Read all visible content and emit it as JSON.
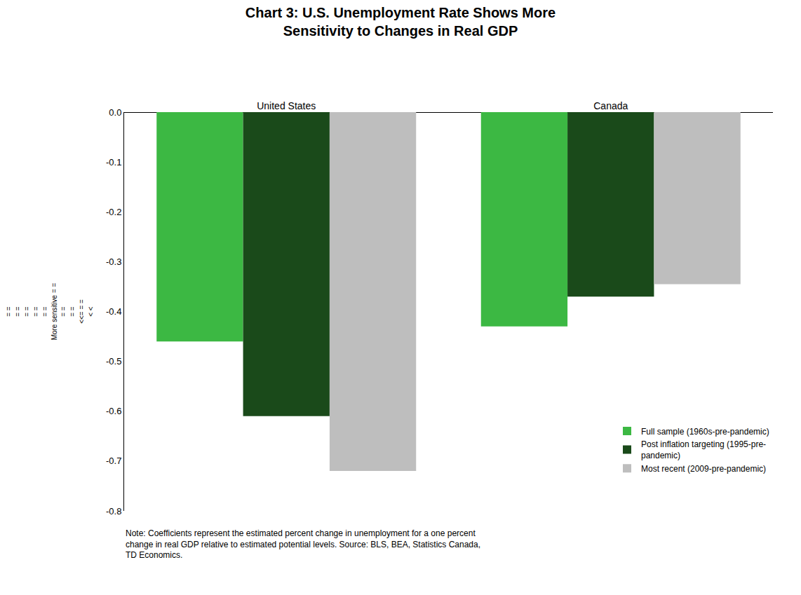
{
  "chart_data": {
    "type": "bar",
    "title": "Chart 3: U.S. Unemployment Rate Shows More\nSensitivity to Changes in Real GDP",
    "ylabel": "= =\n= =\n= =\n= =\n= =\nMore sensitive = =\n= =\n= =\n<<= = =\n< <",
    "categories": [
      "United States",
      "Canada"
    ],
    "series": [
      {
        "name": "Full sample (1960s-pre-pandemic)",
        "color": "#3CB843",
        "values": [
          -0.46,
          -0.43
        ]
      },
      {
        "name": "Post inflation targeting (1995-pre-\npandemic)",
        "color": "#1A4A1A",
        "values": [
          -0.61,
          -0.37
        ]
      },
      {
        "name": "Most recent (2009-pre-pandemic)",
        "color": "#BEBEBE",
        "values": [
          -0.72,
          -0.345
        ]
      }
    ],
    "ylim": [
      -0.8,
      0.0
    ],
    "yticks": [
      {
        "value": 0,
        "label": "0.0"
      },
      -0.1,
      -0.2,
      -0.3,
      -0.4,
      -0.5,
      -0.6,
      -0.7,
      -0.8
    ],
    "grid": false,
    "legend": "lower right",
    "annotations": [
      "Note: Coefficients represent the estimated percent change in unemployment for a one percent\nchange in real GDP relative to estimated potential levels. Source: BLS, BEA, Statistics Canada,\nTD Economics."
    ]
  }
}
